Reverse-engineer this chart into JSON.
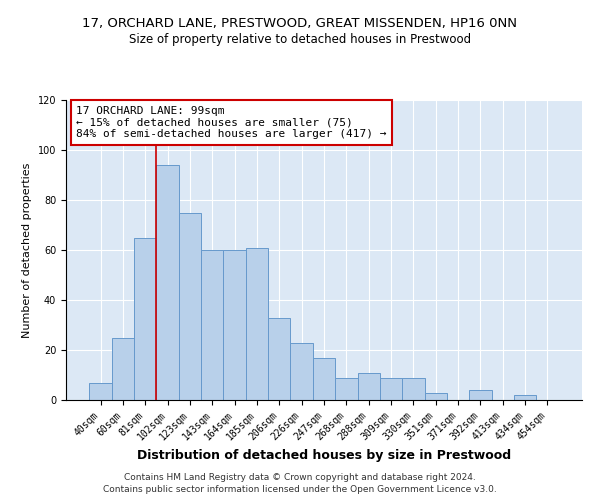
{
  "title": "17, ORCHARD LANE, PRESTWOOD, GREAT MISSENDEN, HP16 0NN",
  "subtitle": "Size of property relative to detached houses in Prestwood",
  "xlabel": "Distribution of detached houses by size in Prestwood",
  "ylabel": "Number of detached properties",
  "bar_labels": [
    "40sqm",
    "60sqm",
    "81sqm",
    "102sqm",
    "123sqm",
    "143sqm",
    "164sqm",
    "185sqm",
    "206sqm",
    "226sqm",
    "247sqm",
    "268sqm",
    "288sqm",
    "309sqm",
    "330sqm",
    "351sqm",
    "371sqm",
    "392sqm",
    "413sqm",
    "434sqm",
    "454sqm"
  ],
  "bar_values": [
    7,
    25,
    65,
    94,
    75,
    60,
    60,
    61,
    33,
    23,
    17,
    9,
    11,
    9,
    9,
    3,
    0,
    4,
    0,
    2,
    0
  ],
  "bar_color": "#b8d0ea",
  "bar_edge_color": "#6699cc",
  "bar_edge_width": 0.7,
  "vline_index": 3,
  "vline_color": "#cc0000",
  "annotation_line1": "17 ORCHARD LANE: 99sqm",
  "annotation_line2": "← 15% of detached houses are smaller (75)",
  "annotation_line3": "84% of semi-detached houses are larger (417) →",
  "annotation_box_color": "#ffffff",
  "annotation_box_edge_color": "#cc0000",
  "ylim": [
    0,
    120
  ],
  "yticks": [
    0,
    20,
    40,
    60,
    80,
    100,
    120
  ],
  "background_color": "#dce8f5",
  "footer_line1": "Contains HM Land Registry data © Crown copyright and database right 2024.",
  "footer_line2": "Contains public sector information licensed under the Open Government Licence v3.0.",
  "title_fontsize": 9.5,
  "subtitle_fontsize": 8.5,
  "xlabel_fontsize": 9,
  "ylabel_fontsize": 8,
  "tick_fontsize": 7,
  "annotation_fontsize": 8,
  "footer_fontsize": 6.5
}
